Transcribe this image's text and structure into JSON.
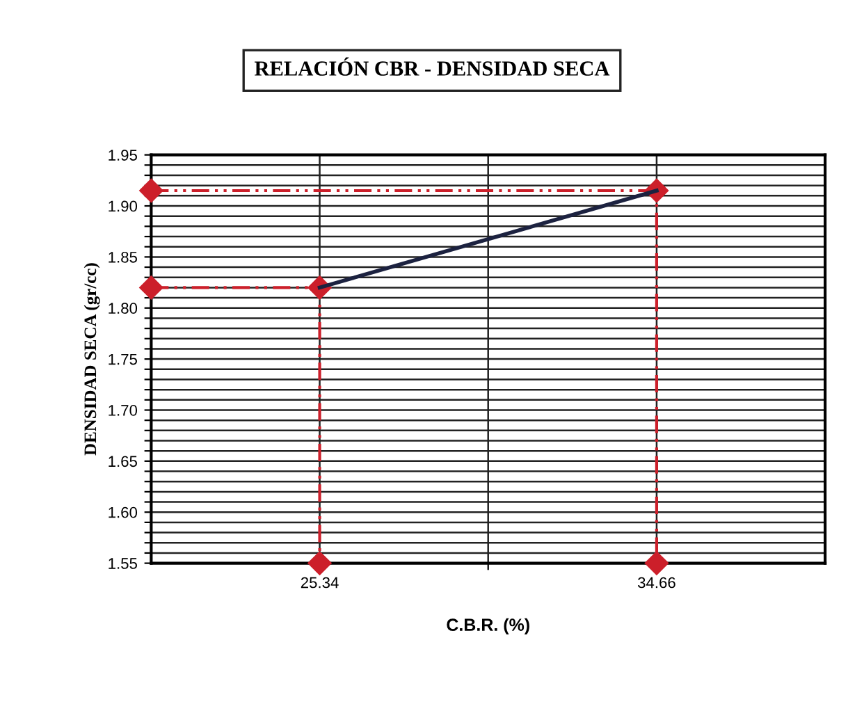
{
  "chart_data": {
    "type": "line",
    "title": "RELACIÓN CBR - DENSIDAD SECA",
    "xlabel": "C.B.R. (%)",
    "ylabel": "DENSIDAD SECA (gr/cc)",
    "xlim": [
      20.68,
      39.32
    ],
    "xticks": [
      25.34,
      {
        "value": 30,
        "label": null
      },
      34.66
    ],
    "ylim": [
      1.55,
      1.95
    ],
    "yticks": [
      1.55,
      {
        "value": 1.56,
        "label": null
      },
      {
        "value": 1.57,
        "label": null
      },
      {
        "value": 1.58,
        "label": null
      },
      {
        "value": 1.59,
        "label": null
      },
      {
        "value": 1.6,
        "label": "1.60"
      },
      {
        "value": 1.61,
        "label": null
      },
      {
        "value": 1.62,
        "label": null
      },
      {
        "value": 1.63,
        "label": null
      },
      {
        "value": 1.64,
        "label": null
      },
      1.65,
      {
        "value": 1.66,
        "label": null
      },
      {
        "value": 1.67,
        "label": null
      },
      {
        "value": 1.68,
        "label": null
      },
      {
        "value": 1.69,
        "label": null
      },
      {
        "value": 1.7,
        "label": "1.70"
      },
      {
        "value": 1.71,
        "label": null
      },
      {
        "value": 1.72,
        "label": null
      },
      {
        "value": 1.73,
        "label": null
      },
      {
        "value": 1.74,
        "label": null
      },
      1.75,
      {
        "value": 1.76,
        "label": null
      },
      {
        "value": 1.77,
        "label": null
      },
      {
        "value": 1.78,
        "label": null
      },
      {
        "value": 1.79,
        "label": null
      },
      {
        "value": 1.8,
        "label": "1.80"
      },
      {
        "value": 1.81,
        "label": null
      },
      {
        "value": 1.82,
        "label": null
      },
      {
        "value": 1.83,
        "label": null
      },
      {
        "value": 1.84,
        "label": null
      },
      1.85,
      {
        "value": 1.86,
        "label": null
      },
      {
        "value": 1.87,
        "label": null
      },
      {
        "value": 1.88,
        "label": null
      },
      {
        "value": 1.89,
        "label": null
      },
      {
        "value": 1.9,
        "label": "1.90"
      },
      {
        "value": 1.91,
        "label": null
      },
      {
        "value": 1.92,
        "label": null
      },
      {
        "value": 1.93,
        "label": null
      },
      {
        "value": 1.94,
        "label": null
      },
      1.95
    ],
    "grid": true,
    "series": [
      {
        "color": "#cc1f2a",
        "x": [
          20.68,
          25.34,
          25.34
        ],
        "values": [
          1.82,
          1.82,
          1.55
        ],
        "marker": "diamond",
        "line_style": "dashed"
      },
      {
        "color": "#cc1f2a",
        "x": [
          20.68,
          34.66,
          34.66
        ],
        "values": [
          1.915,
          1.915,
          1.55
        ],
        "marker": "diamond",
        "line_style": "dashed"
      },
      {
        "color": "#1c2240",
        "x": [
          25.34,
          34.66
        ],
        "values": [
          1.82,
          1.915
        ],
        "marker": "none",
        "line_style": "solid"
      }
    ]
  }
}
